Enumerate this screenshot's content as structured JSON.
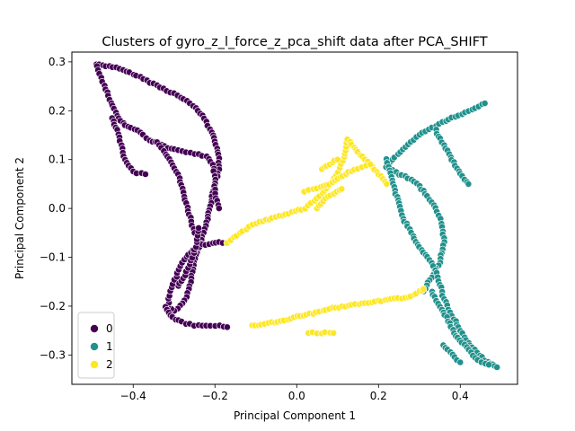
{
  "chart_data": {
    "type": "scatter",
    "title": "Clusters of gyro_z_l_force_z_pca_shift data after PCA_SHIFT",
    "xlabel": "Principal Component 1",
    "ylabel": "Principal Component 2",
    "xlim": [
      -0.55,
      0.54
    ],
    "ylim": [
      -0.36,
      0.32
    ],
    "xticks": [
      -0.4,
      -0.2,
      0.0,
      0.2,
      0.4
    ],
    "yticks": [
      -0.3,
      -0.2,
      -0.1,
      0.0,
      0.1,
      0.2,
      0.3
    ],
    "xtick_labels": [
      "−0.4",
      "−0.2",
      "0.0",
      "0.2",
      "0.4"
    ],
    "ytick_labels": [
      "−0.3",
      "−0.2",
      "−0.1",
      "0.0",
      "0.1",
      "0.2",
      "0.3"
    ],
    "grid": false,
    "legend_position": "lower-left",
    "legend": [
      {
        "label": "0",
        "color": "#440154"
      },
      {
        "label": "1",
        "color": "#21918c"
      },
      {
        "label": "2",
        "color": "#fde725"
      }
    ],
    "series": [
      {
        "color": "#440154",
        "paths": [
          [
            [
              -0.49,
              0.295
            ],
            [
              -0.45,
              0.29
            ],
            [
              -0.4,
              0.275
            ],
            [
              -0.35,
              0.255
            ],
            [
              -0.3,
              0.235
            ],
            [
              -0.26,
              0.215
            ],
            [
              -0.23,
              0.19
            ],
            [
              -0.205,
              0.15
            ],
            [
              -0.19,
              0.11
            ],
            [
              -0.19,
              0.08
            ],
            [
              -0.2,
              0.05
            ],
            [
              -0.21,
              0.01
            ],
            [
              -0.22,
              -0.03
            ],
            [
              -0.235,
              -0.07
            ],
            [
              -0.25,
              -0.11
            ],
            [
              -0.26,
              -0.15
            ],
            [
              -0.27,
              -0.18
            ],
            [
              -0.285,
              -0.2
            ],
            [
              -0.3,
              -0.21
            ],
            [
              -0.315,
              -0.2
            ],
            [
              -0.31,
              -0.17
            ],
            [
              -0.295,
              -0.14
            ],
            [
              -0.28,
              -0.11
            ],
            [
              -0.26,
              -0.09
            ],
            [
              -0.23,
              -0.075
            ],
            [
              -0.19,
              -0.07
            ],
            [
              -0.17,
              -0.07
            ]
          ],
          [
            [
              -0.49,
              0.29
            ],
            [
              -0.475,
              0.26
            ],
            [
              -0.46,
              0.23
            ],
            [
              -0.44,
              0.19
            ],
            [
              -0.42,
              0.17
            ],
            [
              -0.39,
              0.16
            ],
            [
              -0.36,
              0.14
            ],
            [
              -0.33,
              0.13
            ],
            [
              -0.3,
              0.12
            ],
            [
              -0.27,
              0.115
            ],
            [
              -0.24,
              0.11
            ],
            [
              -0.22,
              0.105
            ],
            [
              -0.205,
              0.09
            ],
            [
              -0.2,
              0.06
            ],
            [
              -0.2,
              0.03
            ],
            [
              -0.19,
              0.0
            ]
          ],
          [
            [
              -0.34,
              0.135
            ],
            [
              -0.31,
              0.1
            ],
            [
              -0.29,
              0.07
            ],
            [
              -0.28,
              0.04
            ],
            [
              -0.27,
              0.01
            ],
            [
              -0.26,
              -0.02
            ],
            [
              -0.25,
              -0.05
            ]
          ],
          [
            [
              -0.45,
              0.185
            ],
            [
              -0.44,
              0.16
            ],
            [
              -0.43,
              0.13
            ],
            [
              -0.42,
              0.1
            ],
            [
              -0.4,
              0.075
            ],
            [
              -0.37,
              0.07
            ]
          ],
          [
            [
              -0.32,
              -0.2
            ],
            [
              -0.31,
              -0.22
            ],
            [
              -0.29,
              -0.23
            ],
            [
              -0.27,
              -0.235
            ],
            [
              -0.25,
              -0.24
            ],
            [
              -0.22,
              -0.24
            ],
            [
              -0.19,
              -0.24
            ],
            [
              -0.17,
              -0.243
            ]
          ],
          [
            [
              -0.29,
              -0.16
            ],
            [
              -0.27,
              -0.13
            ],
            [
              -0.255,
              -0.1
            ],
            [
              -0.245,
              -0.07
            ],
            [
              -0.24,
              -0.04
            ]
          ]
        ]
      },
      {
        "color": "#21918c",
        "paths": [
          [
            [
              0.22,
              0.09
            ],
            [
              0.26,
              0.12
            ],
            [
              0.3,
              0.15
            ],
            [
              0.34,
              0.17
            ],
            [
              0.38,
              0.185
            ],
            [
              0.42,
              0.2
            ],
            [
              0.46,
              0.215
            ]
          ],
          [
            [
              0.22,
              0.085
            ],
            [
              0.25,
              0.07
            ],
            [
              0.28,
              0.06
            ],
            [
              0.3,
              0.045
            ],
            [
              0.32,
              0.025
            ],
            [
              0.34,
              0.0
            ],
            [
              0.355,
              -0.03
            ],
            [
              0.36,
              -0.07
            ],
            [
              0.35,
              -0.11
            ],
            [
              0.33,
              -0.14
            ],
            [
              0.31,
              -0.17
            ]
          ],
          [
            [
              0.22,
              0.1
            ],
            [
              0.235,
              0.05
            ],
            [
              0.25,
              0.01
            ],
            [
              0.26,
              -0.02
            ],
            [
              0.28,
              -0.05
            ],
            [
              0.3,
              -0.08
            ],
            [
              0.32,
              -0.1
            ],
            [
              0.34,
              -0.125
            ],
            [
              0.35,
              -0.155
            ],
            [
              0.36,
              -0.185
            ],
            [
              0.38,
              -0.22
            ],
            [
              0.4,
              -0.25
            ],
            [
              0.42,
              -0.275
            ],
            [
              0.44,
              -0.295
            ],
            [
              0.46,
              -0.31
            ],
            [
              0.48,
              -0.32
            ],
            [
              0.49,
              -0.325
            ]
          ],
          [
            [
              0.33,
              -0.17
            ],
            [
              0.35,
              -0.2
            ],
            [
              0.37,
              -0.23
            ],
            [
              0.39,
              -0.26
            ],
            [
              0.41,
              -0.28
            ],
            [
              0.43,
              -0.3
            ],
            [
              0.45,
              -0.315
            ],
            [
              0.47,
              -0.32
            ]
          ],
          [
            [
              0.34,
              0.16
            ],
            [
              0.36,
              0.13
            ],
            [
              0.38,
              0.1
            ],
            [
              0.4,
              0.07
            ],
            [
              0.42,
              0.05
            ]
          ],
          [
            [
              0.36,
              -0.28
            ],
            [
              0.38,
              -0.3
            ],
            [
              0.4,
              -0.315
            ]
          ]
        ]
      },
      {
        "color": "#fde725",
        "paths": [
          [
            [
              -0.17,
              -0.07
            ],
            [
              -0.14,
              -0.05
            ],
            [
              -0.1,
              -0.03
            ],
            [
              -0.06,
              -0.02
            ],
            [
              -0.02,
              -0.01
            ],
            [
              0.02,
              0.0
            ],
            [
              0.05,
              0.02
            ],
            [
              0.08,
              0.045
            ],
            [
              0.1,
              0.075
            ],
            [
              0.115,
              0.105
            ],
            [
              0.125,
              0.14
            ],
            [
              0.14,
              0.125
            ],
            [
              0.16,
              0.105
            ],
            [
              0.18,
              0.09
            ],
            [
              0.2,
              0.07
            ],
            [
              0.22,
              0.05
            ]
          ],
          [
            [
              -0.11,
              -0.24
            ],
            [
              -0.07,
              -0.235
            ],
            [
              -0.03,
              -0.23
            ],
            [
              0.0,
              -0.22
            ],
            [
              0.04,
              -0.215
            ],
            [
              0.08,
              -0.205
            ],
            [
              0.12,
              -0.2
            ],
            [
              0.16,
              -0.195
            ],
            [
              0.2,
              -0.19
            ],
            [
              0.24,
              -0.185
            ],
            [
              0.28,
              -0.18
            ],
            [
              0.3,
              -0.17
            ],
            [
              0.31,
              -0.165
            ]
          ],
          [
            [
              0.02,
              0.035
            ],
            [
              0.05,
              0.04
            ],
            [
              0.08,
              0.05
            ],
            [
              0.1,
              0.06
            ],
            [
              0.12,
              0.07
            ],
            [
              0.14,
              0.08
            ],
            [
              0.16,
              0.085
            ],
            [
              0.18,
              0.09
            ]
          ],
          [
            [
              0.03,
              -0.255
            ],
            [
              0.06,
              -0.255
            ],
            [
              0.09,
              -0.255
            ]
          ],
          [
            [
              0.06,
              0.08
            ],
            [
              0.08,
              0.09
            ],
            [
              0.1,
              0.1
            ]
          ],
          [
            [
              0.05,
              0.0
            ],
            [
              0.07,
              0.02
            ],
            [
              0.09,
              0.03
            ],
            [
              0.11,
              0.04
            ]
          ]
        ]
      }
    ]
  }
}
